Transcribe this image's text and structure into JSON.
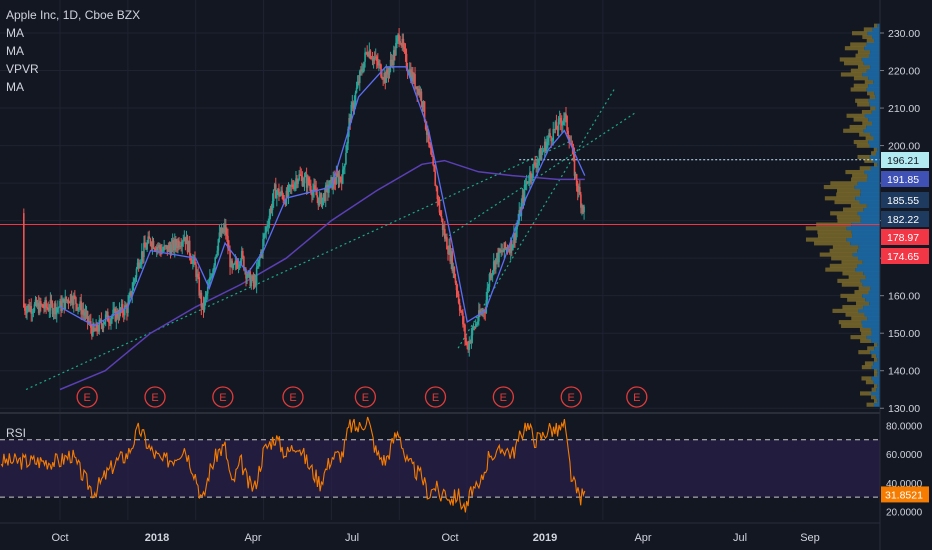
{
  "legend": {
    "title": "Apple Inc, 1D, Cboe BZX",
    "indicators": [
      "MA",
      "MA",
      "VPVR",
      "MA"
    ]
  },
  "rsi_label": "RSI",
  "chart_data": [
    {
      "type": "line",
      "title": "Apple Inc, 1D, Cboe BZX",
      "x_ticks": [
        "Oct",
        "2018",
        "Apr",
        "Jul",
        "Oct",
        "2019",
        "Apr",
        "Jul",
        "Sep"
      ],
      "y_ticks": [
        130,
        140,
        150,
        160,
        170,
        180,
        190,
        200,
        210,
        220,
        230
      ],
      "ylim": [
        129,
        234
      ],
      "price_path": [
        {
          "m": 0,
          "v": 157
        },
        {
          "m": 0.5,
          "v": 160
        },
        {
          "m": 1.0,
          "v": 156
        },
        {
          "m": 1.5,
          "v": 150
        },
        {
          "m": 2.0,
          "v": 154
        },
        {
          "m": 2.5,
          "v": 155
        },
        {
          "m": 3.0,
          "v": 157
        },
        {
          "m": 3.5,
          "v": 170
        },
        {
          "m": 4.0,
          "v": 175
        },
        {
          "m": 4.5,
          "v": 172
        },
        {
          "m": 5.0,
          "v": 173
        },
        {
          "m": 5.5,
          "v": 176
        },
        {
          "m": 6.0,
          "v": 167
        },
        {
          "m": 6.3,
          "v": 156
        },
        {
          "m": 6.6,
          "v": 163
        },
        {
          "m": 7.0,
          "v": 175
        },
        {
          "m": 7.3,
          "v": 178
        },
        {
          "m": 7.6,
          "v": 166
        },
        {
          "m": 8.0,
          "v": 171
        },
        {
          "m": 8.3,
          "v": 165
        },
        {
          "m": 8.6,
          "v": 163
        },
        {
          "m": 9.0,
          "v": 175
        },
        {
          "m": 9.5,
          "v": 188
        },
        {
          "m": 10.0,
          "v": 186
        },
        {
          "m": 10.5,
          "v": 192
        },
        {
          "m": 11.0,
          "v": 190
        },
        {
          "m": 11.5,
          "v": 185
        },
        {
          "m": 12.0,
          "v": 190
        },
        {
          "m": 12.5,
          "v": 192
        },
        {
          "m": 12.8,
          "v": 207
        },
        {
          "m": 13.2,
          "v": 217
        },
        {
          "m": 13.6,
          "v": 226
        },
        {
          "m": 14.0,
          "v": 222
        },
        {
          "m": 14.4,
          "v": 218
        },
        {
          "m": 14.8,
          "v": 225
        },
        {
          "m": 15.0,
          "v": 230
        },
        {
          "m": 15.3,
          "v": 222
        },
        {
          "m": 15.6,
          "v": 218
        },
        {
          "m": 16.0,
          "v": 213
        },
        {
          "m": 16.3,
          "v": 200
        },
        {
          "m": 16.6,
          "v": 190
        },
        {
          "m": 16.8,
          "v": 182
        },
        {
          "m": 17.0,
          "v": 176
        },
        {
          "m": 17.3,
          "v": 170
        },
        {
          "m": 17.6,
          "v": 160
        },
        {
          "m": 17.8,
          "v": 153
        },
        {
          "m": 18.0,
          "v": 146
        },
        {
          "m": 18.2,
          "v": 150
        },
        {
          "m": 18.5,
          "v": 154
        },
        {
          "m": 18.8,
          "v": 157
        },
        {
          "m": 19.0,
          "v": 166
        },
        {
          "m": 19.3,
          "v": 170
        },
        {
          "m": 19.6,
          "v": 172
        },
        {
          "m": 20.0,
          "v": 174
        },
        {
          "m": 20.3,
          "v": 181
        },
        {
          "m": 20.6,
          "v": 190
        },
        {
          "m": 21.0,
          "v": 195
        },
        {
          "m": 21.3,
          "v": 198
        },
        {
          "m": 21.6,
          "v": 202
        },
        {
          "m": 22.0,
          "v": 205
        },
        {
          "m": 22.3,
          "v": 208
        },
        {
          "m": 22.6,
          "v": 200
        },
        {
          "m": 22.8,
          "v": 191
        },
        {
          "m": 23.0,
          "v": 186
        },
        {
          "m": 23.2,
          "v": 182
        }
      ],
      "ma_fast": [
        {
          "m": 0,
          "v": 157
        },
        {
          "m": 1.5,
          "v": 152
        },
        {
          "m": 3.0,
          "v": 157
        },
        {
          "m": 4.0,
          "v": 172
        },
        {
          "m": 6.0,
          "v": 170
        },
        {
          "m": 6.6,
          "v": 162
        },
        {
          "m": 7.3,
          "v": 174
        },
        {
          "m": 8.3,
          "v": 166
        },
        {
          "m": 9.0,
          "v": 172
        },
        {
          "m": 10.0,
          "v": 186
        },
        {
          "m": 12.0,
          "v": 189
        },
        {
          "m": 13.2,
          "v": 213
        },
        {
          "m": 14.4,
          "v": 221
        },
        {
          "m": 15.3,
          "v": 221
        },
        {
          "m": 16.3,
          "v": 204
        },
        {
          "m": 17.3,
          "v": 175
        },
        {
          "m": 18.0,
          "v": 153
        },
        {
          "m": 18.8,
          "v": 156
        },
        {
          "m": 19.6,
          "v": 169
        },
        {
          "m": 20.6,
          "v": 186
        },
        {
          "m": 21.6,
          "v": 199
        },
        {
          "m": 22.3,
          "v": 204
        },
        {
          "m": 23.2,
          "v": 192
        }
      ],
      "ma_slow": [
        {
          "m": 0,
          "v": 135
        },
        {
          "m": 2,
          "v": 140
        },
        {
          "m": 4,
          "v": 150
        },
        {
          "m": 6,
          "v": 157
        },
        {
          "m": 8,
          "v": 163
        },
        {
          "m": 10,
          "v": 170
        },
        {
          "m": 12,
          "v": 180
        },
        {
          "m": 14,
          "v": 188
        },
        {
          "m": 16,
          "v": 195
        },
        {
          "m": 17,
          "v": 196
        },
        {
          "m": 18.5,
          "v": 193
        },
        {
          "m": 20,
          "v": 192
        },
        {
          "m": 22,
          "v": 191
        },
        {
          "m": 23.2,
          "v": 191
        }
      ],
      "trendlines": [
        {
          "from": {
            "m": -1.5,
            "v": 135
          },
          "to": {
            "m": 22.5,
            "v": 201
          }
        },
        {
          "from": {
            "m": 17.6,
            "v": 146
          },
          "to": {
            "m": 24.5,
            "v": 215
          }
        },
        {
          "from": {
            "m": 17.2,
            "v": 176
          },
          "to": {
            "m": 25.5,
            "v": 209
          }
        }
      ],
      "horizontal_lines": [
        {
          "value": 178.97,
          "color": "#f23645"
        },
        {
          "value": 196.21,
          "color": "#c5e8ff",
          "from_m": 20.3
        }
      ],
      "earnings_markers": {
        "label": "E",
        "months": [
          1.2,
          4.2,
          7.2,
          10.3,
          13.5,
          16.6,
          19.6,
          22.6,
          25.5
        ]
      },
      "price_labels": [
        {
          "value": "196.21",
          "color": "#b2ebf2",
          "text_color": "#131722"
        },
        {
          "value": "191.85",
          "color": "#3f51b5",
          "text_color": "#ffffff"
        },
        {
          "value": "185.55",
          "color": "#1e3a5f",
          "text_color": "#ffffff"
        },
        {
          "value": "182.22",
          "color": "#1e3a5f",
          "text_color": "#ffffff"
        },
        {
          "value": "178.97",
          "color": "#f23645",
          "text_color": "#ffffff"
        },
        {
          "value": "174.65",
          "color": "#f23645",
          "text_color": "#ffffff"
        }
      ],
      "volume_profile": {
        "colors": {
          "up": "#1c6aa6",
          "down": "#7a6a2a"
        }
      },
      "colors": {
        "up": "#26a69a",
        "down": "#ef5350",
        "ma_fast": "#5b6ef5",
        "ma_slow": "#5b3fb5",
        "trend": "#1ea88a",
        "earnings": "#e03b3b"
      }
    },
    {
      "type": "line",
      "title": "RSI",
      "y_ticks": [
        20,
        40,
        60,
        80
      ],
      "y_tick_labels": [
        "20.0000",
        "40.0000",
        "60.0000",
        "80.0000"
      ],
      "ylim": [
        14,
        88
      ],
      "bands": [
        30,
        70
      ],
      "current_label": {
        "value": "31.8521",
        "color": "#f57c00"
      },
      "rsi_path": [
        {
          "m": 0,
          "v": 55
        },
        {
          "m": 0.5,
          "v": 60
        },
        {
          "m": 1.0,
          "v": 45
        },
        {
          "m": 1.5,
          "v": 33
        },
        {
          "m": 2.0,
          "v": 45
        },
        {
          "m": 2.5,
          "v": 55
        },
        {
          "m": 3.0,
          "v": 60
        },
        {
          "m": 3.5,
          "v": 78
        },
        {
          "m": 4.0,
          "v": 63
        },
        {
          "m": 4.5,
          "v": 55
        },
        {
          "m": 5.0,
          "v": 57
        },
        {
          "m": 5.5,
          "v": 65
        },
        {
          "m": 6.0,
          "v": 45
        },
        {
          "m": 6.3,
          "v": 26
        },
        {
          "m": 6.6,
          "v": 48
        },
        {
          "m": 7.0,
          "v": 62
        },
        {
          "m": 7.3,
          "v": 65
        },
        {
          "m": 7.6,
          "v": 38
        },
        {
          "m": 8.0,
          "v": 55
        },
        {
          "m": 8.3,
          "v": 40
        },
        {
          "m": 8.6,
          "v": 36
        },
        {
          "m": 9.0,
          "v": 62
        },
        {
          "m": 9.5,
          "v": 72
        },
        {
          "m": 10.0,
          "v": 60
        },
        {
          "m": 10.5,
          "v": 68
        },
        {
          "m": 11.0,
          "v": 52
        },
        {
          "m": 11.5,
          "v": 40
        },
        {
          "m": 12.0,
          "v": 58
        },
        {
          "m": 12.5,
          "v": 60
        },
        {
          "m": 12.8,
          "v": 80
        },
        {
          "m": 13.2,
          "v": 78
        },
        {
          "m": 13.6,
          "v": 85
        },
        {
          "m": 14.0,
          "v": 60
        },
        {
          "m": 14.4,
          "v": 55
        },
        {
          "m": 14.8,
          "v": 72
        },
        {
          "m": 15.0,
          "v": 76
        },
        {
          "m": 15.3,
          "v": 55
        },
        {
          "m": 15.6,
          "v": 50
        },
        {
          "m": 16.0,
          "v": 44
        },
        {
          "m": 16.3,
          "v": 32
        },
        {
          "m": 16.6,
          "v": 38
        },
        {
          "m": 16.8,
          "v": 30
        },
        {
          "m": 17.0,
          "v": 35
        },
        {
          "m": 17.3,
          "v": 28
        },
        {
          "m": 17.6,
          "v": 32
        },
        {
          "m": 17.8,
          "v": 24
        },
        {
          "m": 18.0,
          "v": 22
        },
        {
          "m": 18.2,
          "v": 36
        },
        {
          "m": 18.5,
          "v": 34
        },
        {
          "m": 18.8,
          "v": 50
        },
        {
          "m": 19.0,
          "v": 62
        },
        {
          "m": 19.3,
          "v": 58
        },
        {
          "m": 19.6,
          "v": 65
        },
        {
          "m": 20.0,
          "v": 60
        },
        {
          "m": 20.3,
          "v": 70
        },
        {
          "m": 20.6,
          "v": 82
        },
        {
          "m": 21.0,
          "v": 70
        },
        {
          "m": 21.3,
          "v": 72
        },
        {
          "m": 21.6,
          "v": 78
        },
        {
          "m": 22.0,
          "v": 76
        },
        {
          "m": 22.3,
          "v": 80
        },
        {
          "m": 22.6,
          "v": 45
        },
        {
          "m": 22.8,
          "v": 35
        },
        {
          "m": 23.0,
          "v": 30
        },
        {
          "m": 23.2,
          "v": 31.85
        }
      ],
      "colors": {
        "line": "#f57c00",
        "band_fill": "#2a1f4a",
        "band_line": "#c9c9c9"
      }
    }
  ]
}
